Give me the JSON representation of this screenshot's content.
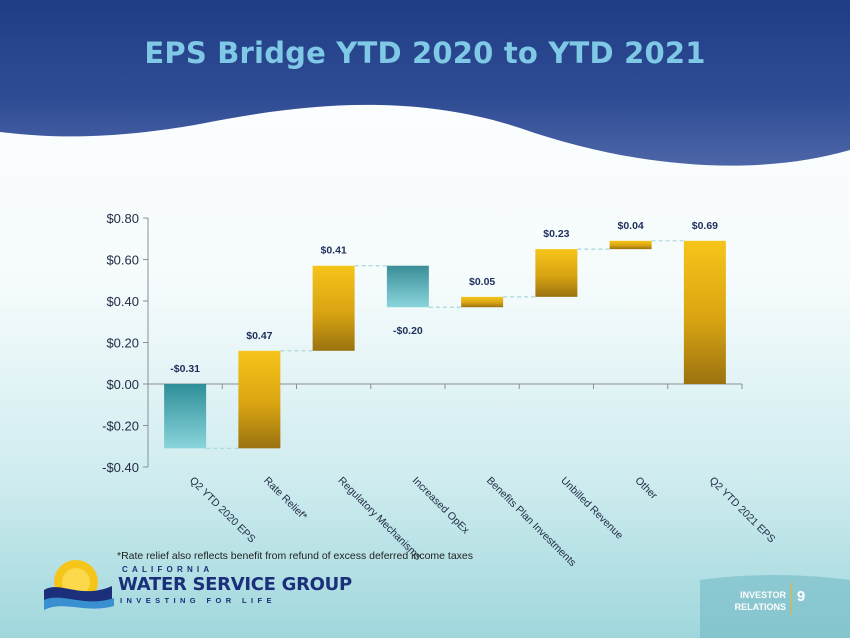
{
  "slide": {
    "title": "EPS Bridge YTD 2020 to YTD 2021",
    "footnote": "*Rate relief also reflects benefit from refund of excess deferred income taxes",
    "page_number": "9",
    "investor_relations": [
      "INVESTOR",
      "RELATIONS"
    ],
    "logo": {
      "top_text": "CALIFORNIA",
      "name": "WATER SERVICE GROUP",
      "tagline": "INVESTING FOR LIFE"
    }
  },
  "colors": {
    "header_dark": "#1f3d86",
    "header_light": "#4a63a6",
    "title": "#7fc9e6",
    "gold_top": "#f6c51a",
    "gold_bottom": "#9a7210",
    "teal_top": "#2e8e98",
    "teal_bottom": "#8ad5dc",
    "connector": "#a7d7da",
    "label": "#1f2f5c"
  },
  "chart_data": {
    "type": "waterfall",
    "title": "",
    "xlabel": "",
    "ylabel": "",
    "ylim": [
      -0.4,
      0.8
    ],
    "yticks": [
      -0.4,
      -0.2,
      0.0,
      0.2,
      0.4,
      0.6,
      0.8
    ],
    "ytick_labels": [
      "-$0.40",
      "-$0.20",
      "$0.00",
      "$0.20",
      "$0.40",
      "$0.60",
      "$0.80"
    ],
    "grid": false,
    "categories": [
      "Q2 YTD 2020 EPS",
      "Rate Relief*",
      "Regulatory Mechanisms",
      "Increased OpEx",
      "Benefits Plan Investments",
      "Unbilled Revenue",
      "Other",
      "Q2 YTD 2021 EPS"
    ],
    "values": [
      -0.31,
      0.47,
      0.41,
      -0.2,
      0.05,
      0.23,
      0.04,
      0.69
    ],
    "data_labels": [
      "-$0.31",
      "$0.47",
      "$0.41",
      "-$0.20",
      "$0.05",
      "$0.23",
      "$0.04",
      "$0.69"
    ],
    "bar_kinds": [
      "total",
      "delta",
      "delta",
      "delta",
      "delta",
      "delta",
      "delta",
      "total"
    ]
  }
}
